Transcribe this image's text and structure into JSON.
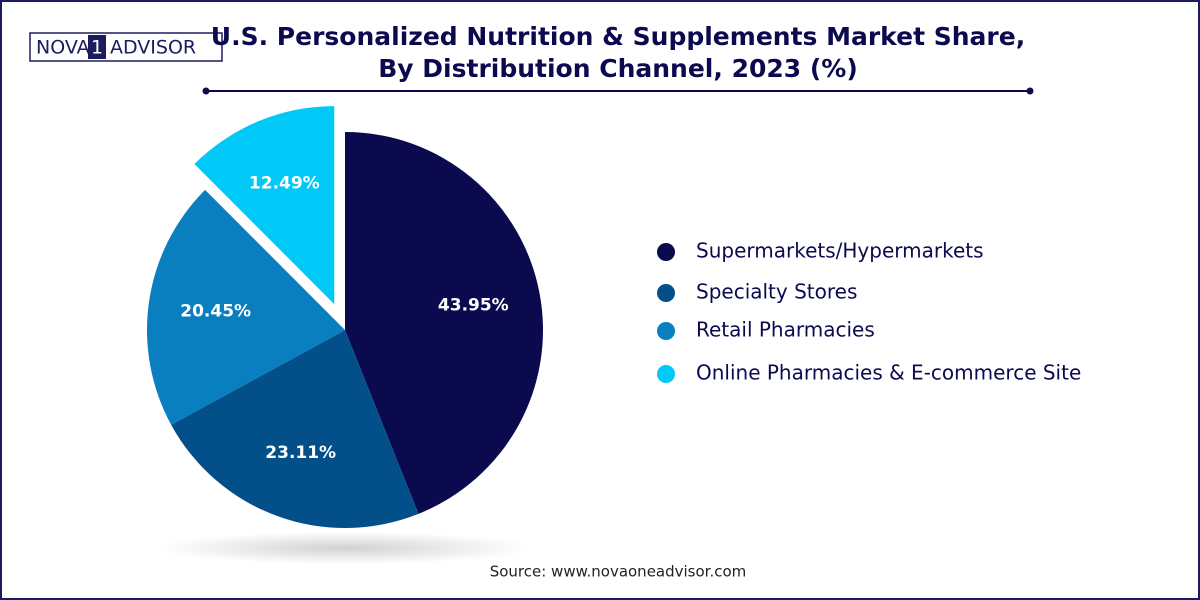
{
  "logo": {
    "left": "NOVA",
    "mark": "1",
    "right": "ADVISOR"
  },
  "chart_data": {
    "type": "pie",
    "title": [
      "U.S. Personalized Nutrition & Supplements Market Share,",
      "By Distribution Channel, 2023 (%)"
    ],
    "categories": [
      "Supermarkets/Hypermarkets",
      "Specialty Stores",
      "Retail Pharmacies",
      "Online Pharmacies & E-commerce Site"
    ],
    "values": [
      43.95,
      23.11,
      20.45,
      12.49
    ],
    "value_labels": [
      "43.95%",
      "23.11%",
      "20.45%",
      "12.49%"
    ],
    "colors": [
      "#0b0a4f",
      "#034f8a",
      "#0a7fbf",
      "#00c9f7"
    ],
    "exploded": [
      false,
      false,
      false,
      true
    ],
    "legend": "right"
  },
  "source": "Source: www.novaoneadvisor.com"
}
